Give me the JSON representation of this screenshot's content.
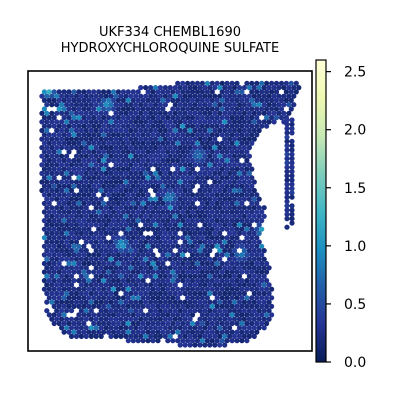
{
  "chart_data": {
    "type": "heatmap",
    "title_line1": "UKF334 CHEMBL1690",
    "title_line2": "HYDROXYCHLOROQUINE SULFATE",
    "xlabel": "",
    "ylabel": "",
    "grid": false,
    "legend": "colorbar-right",
    "colormap": "YlGnBu",
    "colorbar": {
      "min": 0.0,
      "max": 2.6,
      "ticks": [
        0.0,
        0.5,
        1.0,
        1.5,
        2.0,
        2.5
      ],
      "tick_labels": [
        "0.0",
        "0.5",
        "1.0",
        "1.5",
        "2.0",
        "2.5"
      ],
      "stops": [
        "#081d58",
        "#253494",
        "#225ea8",
        "#1d91c0",
        "#41b6c4",
        "#7fcdbb",
        "#c7e9b4",
        "#edf8b1",
        "#ffffd9"
      ]
    },
    "background_value": 0.12,
    "highlight_spots": [
      {
        "x": 0.93,
        "y": 0.84,
        "value": 0.9
      },
      {
        "x": 0.83,
        "y": 0.57,
        "value": 1.1
      },
      {
        "x": 0.33,
        "y": 0.62,
        "value": 0.95
      },
      {
        "x": 0.07,
        "y": 0.07,
        "value": 1.2
      },
      {
        "x": 0.28,
        "y": 0.12,
        "value": 0.8
      },
      {
        "x": 0.93,
        "y": 0.31,
        "value": 1.6
      },
      {
        "x": 0.5,
        "y": 0.45,
        "value": 0.7
      },
      {
        "x": 0.6,
        "y": 0.3,
        "value": 0.6
      },
      {
        "x": 0.75,
        "y": 0.65,
        "value": 0.7
      }
    ]
  }
}
